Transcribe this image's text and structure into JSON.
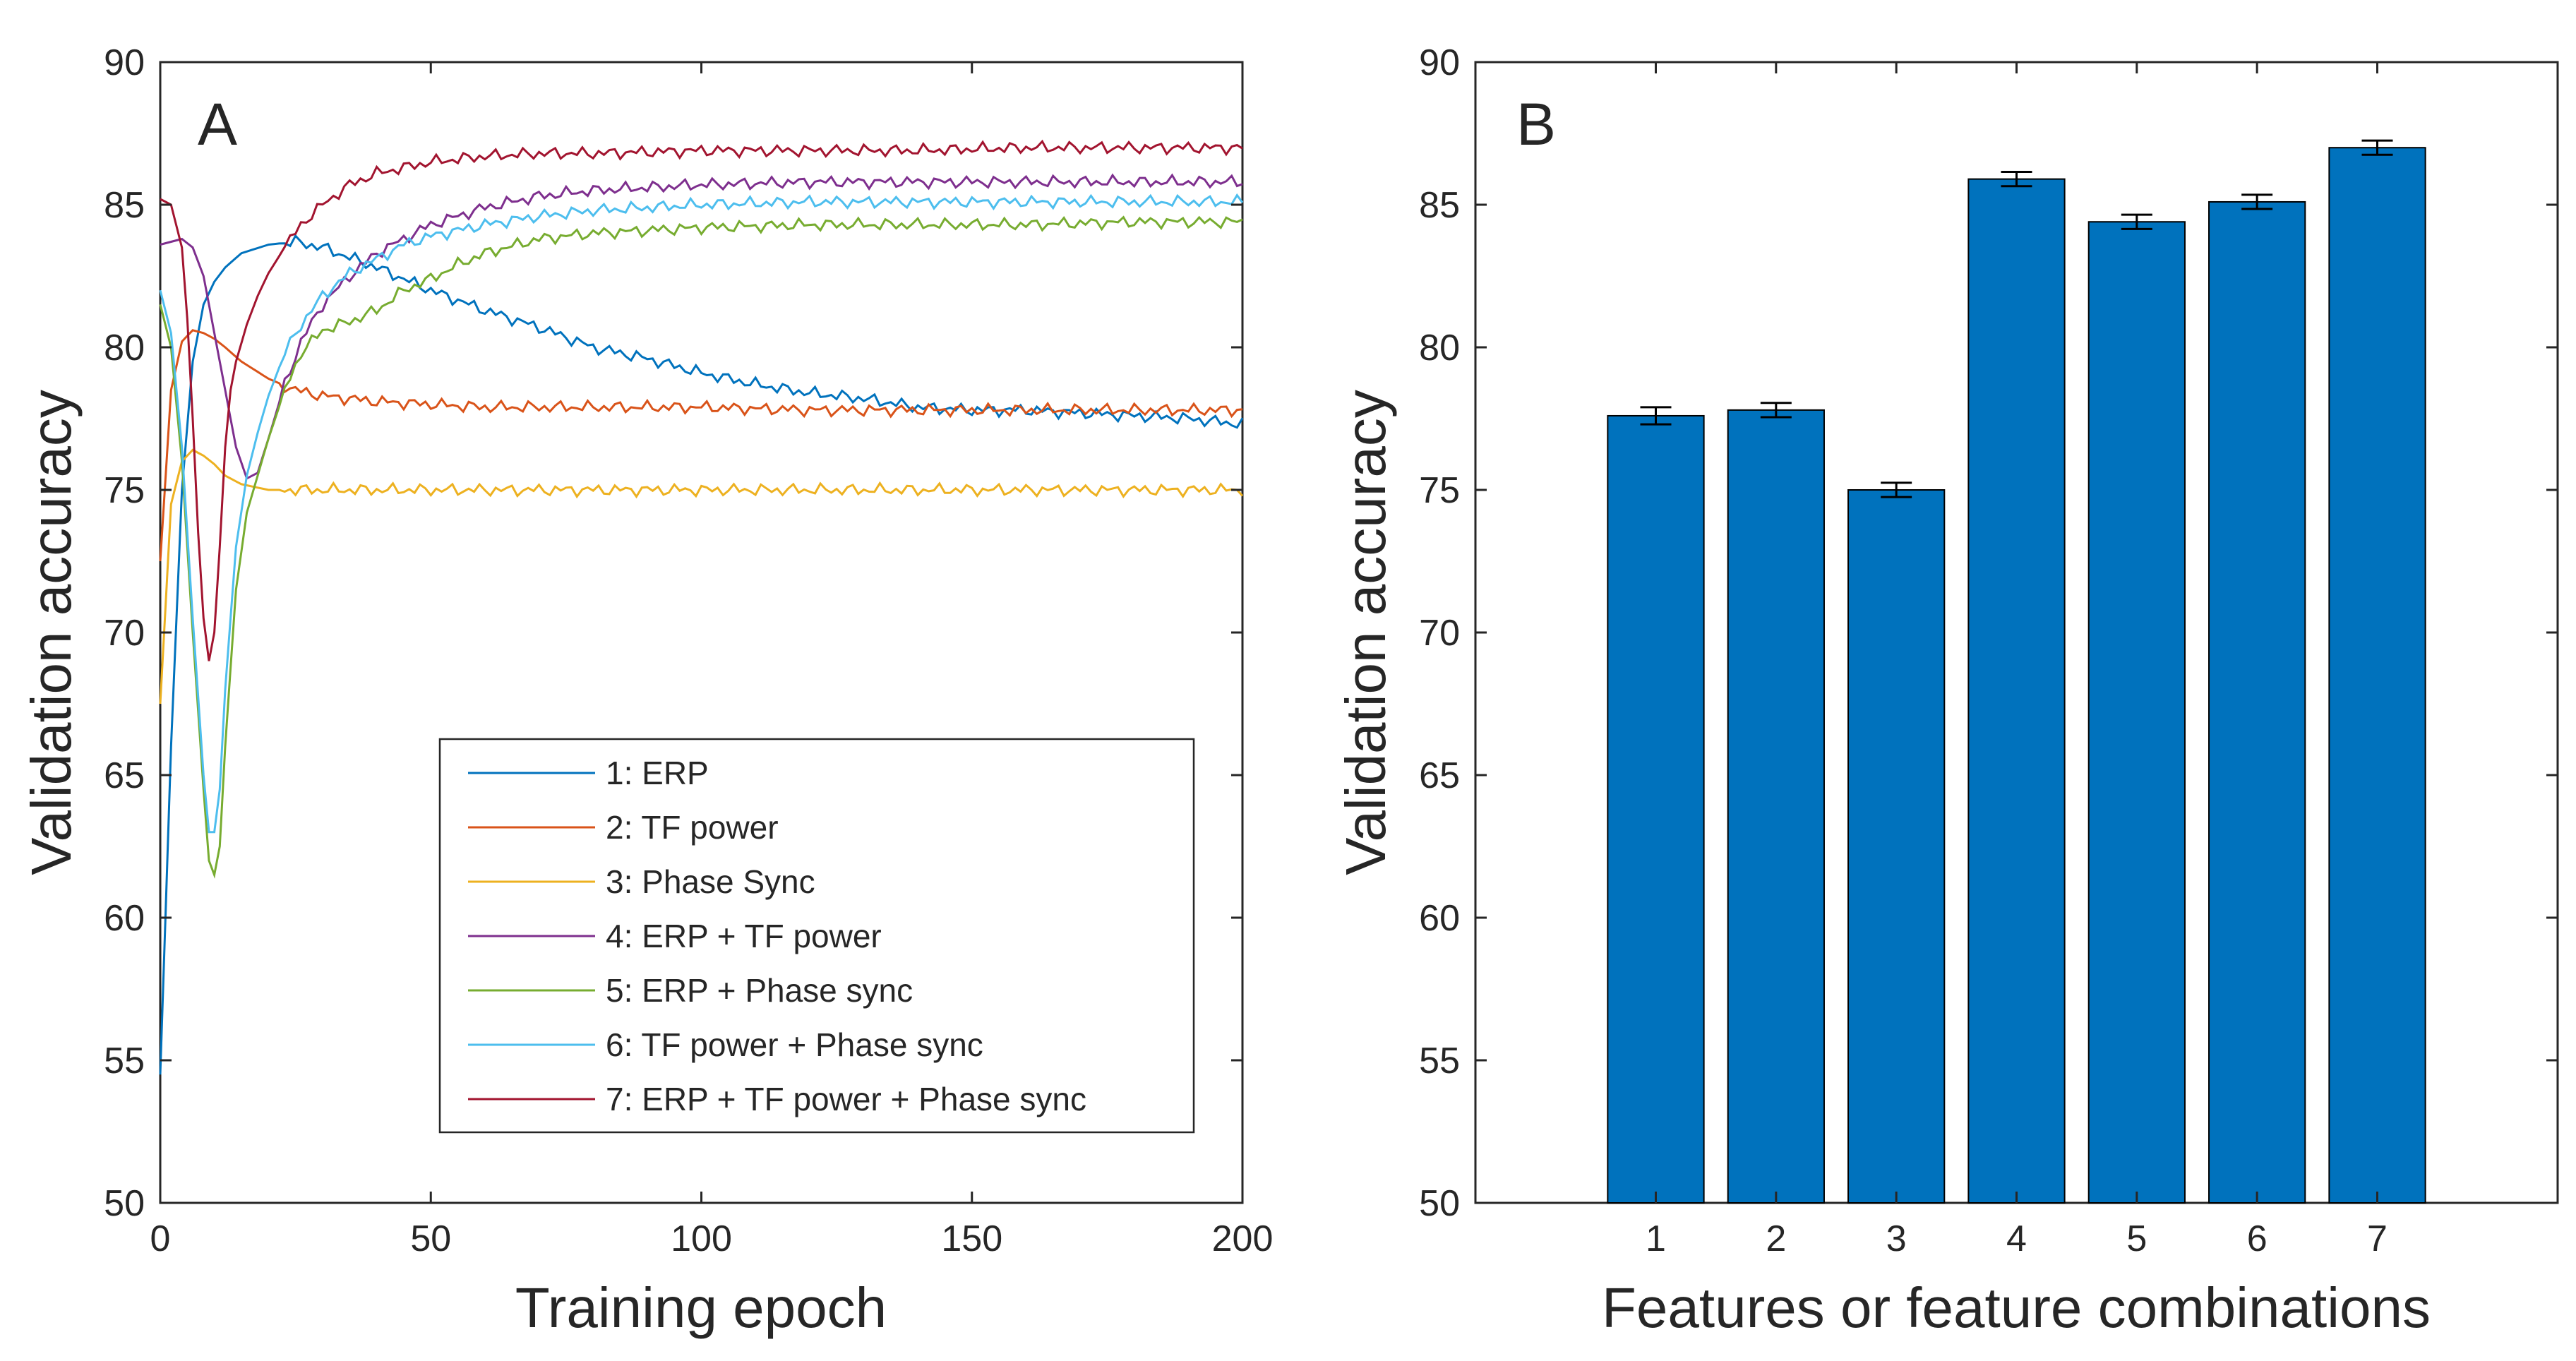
{
  "chart_data": [
    {
      "panel_label": "A",
      "type": "line",
      "xlabel": "Training epoch",
      "ylabel": "Validation accuracy",
      "xlim": [
        0,
        200
      ],
      "ylim": [
        50,
        90
      ],
      "xticks": [
        0,
        50,
        100,
        150,
        200
      ],
      "yticks": [
        50,
        55,
        60,
        65,
        70,
        75,
        80,
        85,
        90
      ],
      "grid": false,
      "legend_position": "lower-right",
      "series": [
        {
          "name": "1: ERP",
          "color": "#0072BD",
          "x": [
            0,
            2,
            4,
            6,
            8,
            10,
            12,
            15,
            20,
            25,
            30,
            40,
            50,
            60,
            70,
            80,
            90,
            100,
            110,
            120,
            130,
            140,
            150,
            160,
            170,
            180,
            190,
            200
          ],
          "y": [
            54.5,
            66,
            75,
            79.5,
            81.5,
            82.3,
            82.8,
            83.3,
            83.6,
            83.7,
            83.5,
            82.8,
            82.0,
            81.3,
            80.7,
            80.0,
            79.6,
            79.1,
            78.7,
            78.4,
            78.2,
            77.9,
            77.8,
            77.8,
            77.7,
            77.6,
            77.5,
            77.3
          ]
        },
        {
          "name": "2: TF power",
          "color": "#D95319",
          "x": [
            0,
            2,
            4,
            6,
            8,
            10,
            12,
            15,
            20,
            25,
            30,
            40,
            50,
            60,
            80,
            100,
            120,
            150,
            175,
            200
          ],
          "y": [
            72.5,
            78.5,
            80.2,
            80.6,
            80.5,
            80.3,
            80.0,
            79.5,
            78.9,
            78.5,
            78.3,
            78.1,
            78.0,
            77.9,
            77.9,
            77.9,
            77.8,
            77.8,
            77.8,
            77.8
          ]
        },
        {
          "name": "3: Phase Sync",
          "color": "#EDB120",
          "x": [
            0,
            2,
            4,
            6,
            8,
            10,
            12,
            15,
            20,
            30,
            50,
            75,
            100,
            125,
            150,
            175,
            200
          ],
          "y": [
            67.5,
            74.5,
            76.0,
            76.4,
            76.2,
            75.9,
            75.5,
            75.2,
            75.0,
            75.0,
            75.0,
            75.0,
            75.0,
            75.0,
            75.0,
            75.0,
            75.0
          ]
        },
        {
          "name": "4: ERP + TF power",
          "color": "#7E2F8E",
          "x": [
            0,
            2,
            4,
            6,
            8,
            10,
            12,
            14,
            16,
            18,
            20,
            23,
            26,
            30,
            35,
            40,
            50,
            60,
            70,
            80,
            90,
            100,
            120,
            140,
            160,
            180,
            200
          ],
          "y": [
            83.6,
            83.7,
            83.8,
            83.5,
            82.5,
            80.5,
            78.5,
            76.5,
            75.4,
            75.6,
            76.8,
            78.7,
            80.2,
            81.5,
            82.5,
            83.3,
            84.3,
            84.9,
            85.3,
            85.5,
            85.6,
            85.7,
            85.8,
            85.8,
            85.8,
            85.8,
            85.8
          ]
        },
        {
          "name": "5: ERP + Phase sync",
          "color": "#77AC30",
          "x": [
            0,
            2,
            4,
            6,
            8,
            9,
            10,
            11,
            12,
            14,
            16,
            18,
            20,
            23,
            26,
            30,
            35,
            40,
            45,
            50,
            55,
            60,
            70,
            80,
            90,
            100,
            120,
            140,
            160,
            180,
            200
          ],
          "y": [
            81.5,
            80.0,
            76.0,
            70.0,
            64.5,
            62.0,
            61.5,
            62.5,
            66.0,
            71.5,
            74.2,
            75.5,
            76.8,
            78.5,
            79.8,
            80.6,
            80.9,
            81.3,
            82.0,
            82.4,
            82.9,
            83.3,
            83.8,
            84.0,
            84.1,
            84.2,
            84.3,
            84.3,
            84.3,
            84.4,
            84.4
          ]
        },
        {
          "name": "6: TF power + Phase sync",
          "color": "#4DBEEE",
          "x": [
            0,
            2,
            4,
            6,
            8,
            9,
            10,
            11,
            12,
            14,
            16,
            18,
            20,
            23,
            26,
            30,
            35,
            40,
            45,
            50,
            60,
            70,
            80,
            90,
            100,
            120,
            140,
            160,
            180,
            200
          ],
          "y": [
            82.0,
            80.5,
            76.5,
            70.5,
            65.0,
            63.0,
            63.0,
            64.5,
            68.0,
            73.0,
            75.5,
            77.0,
            78.3,
            79.8,
            80.8,
            81.8,
            82.6,
            83.1,
            83.6,
            83.9,
            84.3,
            84.6,
            84.8,
            84.9,
            85.0,
            85.1,
            85.1,
            85.1,
            85.1,
            85.1
          ]
        },
        {
          "name": "7: ERP + TF power + Phase sync",
          "color": "#A2142F",
          "x": [
            0,
            2,
            4,
            5,
            6,
            7,
            8,
            9,
            10,
            11,
            12,
            13,
            14,
            16,
            18,
            20,
            23,
            26,
            30,
            35,
            40,
            50,
            60,
            70,
            80,
            100,
            120,
            140,
            160,
            180,
            200
          ],
          "y": [
            85.2,
            85.0,
            83.5,
            81.0,
            77.5,
            73.5,
            70.5,
            69.0,
            70.0,
            73.0,
            76.5,
            78.5,
            79.5,
            80.8,
            81.8,
            82.6,
            83.5,
            84.3,
            85.0,
            85.7,
            86.1,
            86.5,
            86.7,
            86.8,
            86.8,
            86.9,
            86.9,
            86.9,
            87.0,
            87.0,
            87.0
          ]
        }
      ]
    },
    {
      "panel_label": "B",
      "type": "bar",
      "xlabel": "Features or feature combinations",
      "ylabel": "Validation accuracy",
      "ylim": [
        50,
        90
      ],
      "yticks": [
        50,
        55,
        60,
        65,
        70,
        75,
        80,
        85,
        90
      ],
      "grid": false,
      "bar_color": "#0072BD",
      "categories": [
        "1",
        "2",
        "3",
        "4",
        "5",
        "6",
        "7"
      ],
      "values": [
        77.6,
        77.8,
        75.0,
        85.9,
        84.4,
        85.1,
        87.0
      ],
      "errors": [
        0.3,
        0.25,
        0.25,
        0.25,
        0.25,
        0.25,
        0.25
      ]
    }
  ]
}
